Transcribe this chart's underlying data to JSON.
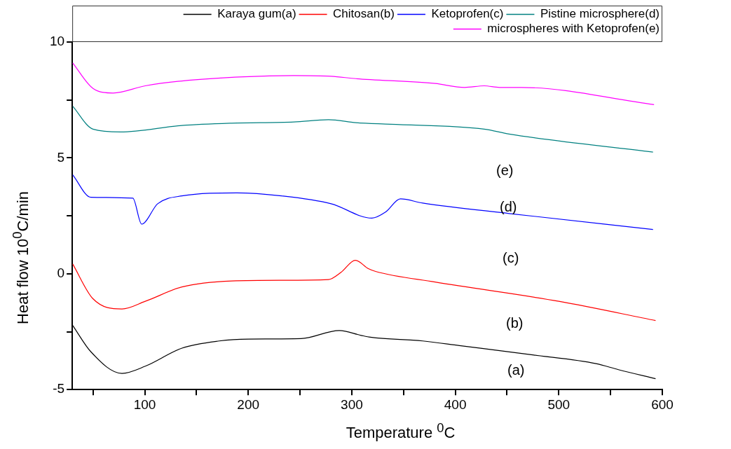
{
  "chart_data": {
    "type": "line",
    "xlabel": "Temperature $^{0}$C",
    "ylabel": "Heat flow 10$^{0}$C/min",
    "xlim": [
      30,
      600
    ],
    "ylim": [
      -5,
      10
    ],
    "xticks": [
      {
        "value": 50,
        "label": null
      },
      100,
      {
        "value": 150,
        "label": null
      },
      200,
      {
        "value": 250,
        "label": null
      },
      300,
      {
        "value": 350,
        "label": null
      },
      400,
      {
        "value": 450,
        "label": null
      },
      500,
      {
        "value": 550,
        "label": null
      },
      600
    ],
    "yticks": [
      -5,
      {
        "value": -2.5,
        "label": null
      },
      0,
      {
        "value": 2.5,
        "label": null
      },
      5,
      {
        "value": 7.5,
        "label": null
      },
      10
    ],
    "grid": false,
    "legend": "top right",
    "marker": "none",
    "line_style": "solid",
    "series": [
      {
        "name": "Karaya gum(a)",
        "color": "#000000",
        "x": [
          30.4,
          48,
          78,
          100.5,
          136,
          172,
          200,
          251,
          288,
          309,
          318,
          368.5,
          404,
          476,
          536,
          557.6,
          593.5
        ],
        "values": [
          -2.23,
          -3.37,
          -4.3,
          -3.99,
          -3.21,
          -2.9,
          -2.82,
          -2.8,
          -2.45,
          -2.66,
          -2.74,
          -2.9,
          -3.1,
          -3.51,
          -3.88,
          -4.14,
          -4.53
        ]
      },
      {
        "name": "Chitosan(b)",
        "color": "#ff0000",
        "x": [
          30.4,
          50,
          78,
          100.5,
          136,
          184,
          232,
          277.6,
          289.6,
          303.4,
          316,
          323,
          380.5,
          500,
          593.5
        ],
        "values": [
          0.42,
          -1.08,
          -1.52,
          -1.19,
          -0.57,
          -0.31,
          -0.28,
          -0.25,
          0.06,
          0.58,
          0.22,
          0.1,
          -0.36,
          -1.19,
          -2.02
        ]
      },
      {
        "name": "Ketoprofen(c)",
        "color": "#0000ff",
        "x": [
          30.4,
          48,
          88.5,
          97,
          112.5,
          136,
          189,
          232,
          280,
          319.5,
          332.6,
          347,
          368.5,
          452,
          591
        ],
        "values": [
          4.27,
          3.3,
          3.26,
          2.14,
          3.02,
          3.36,
          3.49,
          3.36,
          3.02,
          2.4,
          2.66,
          3.23,
          3.05,
          2.6,
          1.91
        ]
      },
      {
        "name": "Pistine microsphere(d)",
        "color": "#008080",
        "x": [
          30.4,
          50,
          76.6,
          136,
          184,
          244,
          277.6,
          304,
          337.4,
          428,
          452,
          591
        ],
        "values": [
          7.23,
          6.24,
          6.12,
          6.4,
          6.5,
          6.55,
          6.65,
          6.52,
          6.45,
          6.24,
          6.03,
          5.25
        ]
      },
      {
        "name": "microspheres with Ketoprofen(e)",
        "color": "#ff00ff",
        "x": [
          30.4,
          50,
          69.4,
          100.5,
          136,
          196,
          244,
          280,
          304,
          380.5,
          409,
          428,
          442.7,
          464,
          592
        ],
        "values": [
          9.1,
          8,
          7.8,
          8.11,
          8.32,
          8.5,
          8.55,
          8.52,
          8.42,
          8.21,
          8.04,
          8.11,
          8.04,
          8.04,
          7.3
        ]
      }
    ],
    "annotations": [
      "(e)",
      "(d)",
      "(c)",
      "(b)",
      "(a)"
    ]
  }
}
